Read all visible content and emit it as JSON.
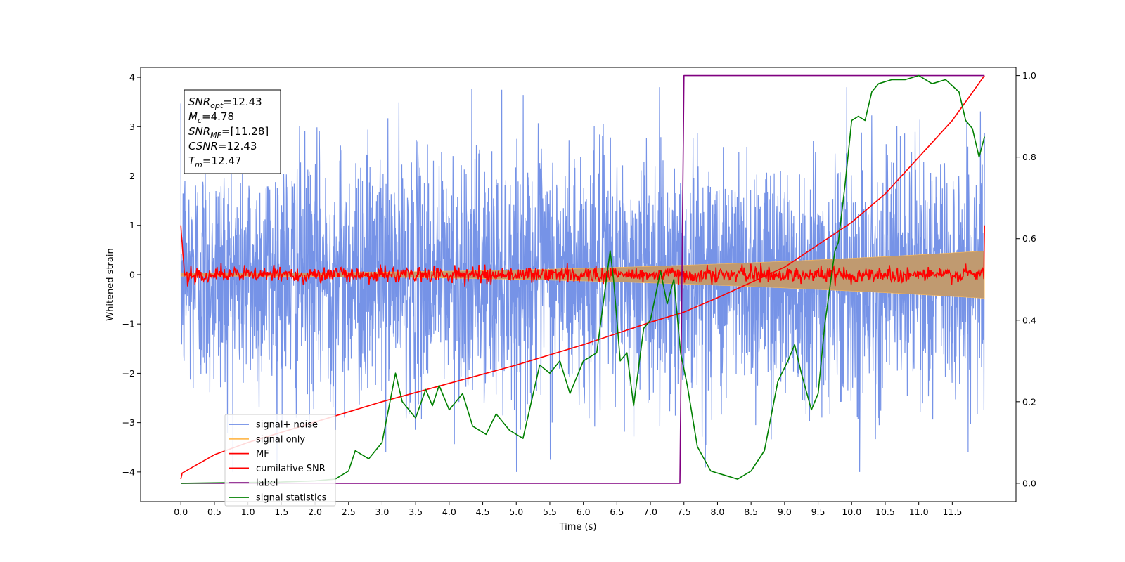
{
  "chart_data": {
    "type": "line",
    "title": "",
    "xlabel": "Time (s)",
    "ylabel": "Whitened strain",
    "xlim": [
      -0.6,
      12.45
    ],
    "ylim": [
      -4.6,
      4.2
    ],
    "y2lim": [
      -0.045,
      1.02
    ],
    "x_ticks": [
      0.0,
      0.5,
      1.0,
      1.5,
      2.0,
      2.5,
      3.0,
      3.5,
      4.0,
      4.5,
      5.0,
      5.5,
      6.0,
      6.5,
      7.0,
      7.5,
      8.0,
      8.5,
      9.0,
      9.5,
      10.0,
      10.5,
      11.0,
      11.5
    ],
    "x_tick_labels": [
      "0.0",
      "0.5",
      "1.0",
      "1.5",
      "2.0",
      "2.5",
      "3.0",
      "3.5",
      "4.0",
      "4.5",
      "5.0",
      "5.5",
      "6.0",
      "6.5",
      "7.0",
      "7.5",
      "8.0",
      "8.5",
      "9.0",
      "9.5",
      "10.0",
      "10.5",
      "11.0",
      "11.5"
    ],
    "y_ticks": [
      4,
      3,
      2,
      1,
      0,
      -1,
      -2,
      -3,
      -4
    ],
    "y_tick_labels": [
      "4",
      "3",
      "2",
      "1",
      "0",
      "−1",
      "−2",
      "−3",
      "−4"
    ],
    "y2_ticks": [
      1.0,
      0.8,
      0.6,
      0.4,
      0.2,
      0.0
    ],
    "y2_tick_labels": [
      "1.0",
      "0.8",
      "0.6",
      "0.4",
      "0.2",
      "0.0"
    ],
    "grid": false,
    "legend_position": "lower-left",
    "series": [
      {
        "name": "signal+ noise",
        "color": "#6f8de6",
        "axis": "left",
        "kind": "noise",
        "x_range": [
          0.0,
          11.98
        ],
        "spread": 1.25
      },
      {
        "name": "signal only",
        "color": "#ffbb55",
        "axis": "left",
        "kind": "chirp",
        "x_range": [
          0.0,
          11.98
        ],
        "amp_start": 0.03,
        "amp_end": 0.48
      },
      {
        "name": "MF",
        "color": "#ff0000",
        "axis": "left",
        "kind": "mf",
        "x_range": [
          0.0,
          11.98
        ],
        "spread": 0.08,
        "edge_value": 1.0
      },
      {
        "name": "cumilative SNR",
        "color": "#ff0000",
        "axis": "right",
        "x": [
          0.0,
          0.02,
          0.5,
          1.0,
          2.0,
          3.0,
          4.0,
          5.0,
          6.0,
          7.0,
          7.5,
          8.0,
          9.0,
          10.0,
          10.5,
          11.0,
          11.5,
          11.98
        ],
        "y": [
          0.01,
          0.025,
          0.07,
          0.1,
          0.15,
          0.2,
          0.245,
          0.29,
          0.34,
          0.395,
          0.42,
          0.455,
          0.53,
          0.64,
          0.71,
          0.8,
          0.89,
          1.0
        ]
      },
      {
        "name": "label",
        "color": "#800080",
        "axis": "right",
        "x": [
          0.0,
          7.44,
          7.5,
          11.98
        ],
        "y": [
          0.0,
          0.0,
          1.0,
          1.0
        ]
      },
      {
        "name": "signal statistics",
        "color": "#008000",
        "axis": "right",
        "x": [
          0.0,
          0.5,
          1.0,
          1.5,
          2.0,
          2.3,
          2.5,
          2.6,
          2.8,
          3.0,
          3.2,
          3.3,
          3.5,
          3.65,
          3.75,
          3.85,
          4.0,
          4.2,
          4.35,
          4.55,
          4.7,
          4.9,
          5.1,
          5.35,
          5.5,
          5.65,
          5.8,
          6.0,
          6.2,
          6.4,
          6.45,
          6.55,
          6.65,
          6.75,
          6.9,
          7.0,
          7.15,
          7.25,
          7.35,
          7.45,
          7.55,
          7.7,
          7.9,
          8.1,
          8.3,
          8.5,
          8.7,
          8.9,
          9.05,
          9.15,
          9.25,
          9.4,
          9.5,
          9.6,
          9.75,
          9.8,
          9.9,
          10.0,
          10.1,
          10.2,
          10.3,
          10.4,
          10.6,
          10.8,
          11.0,
          11.2,
          11.4,
          11.6,
          11.7,
          11.8,
          11.9,
          11.98
        ],
        "y": [
          0.0,
          0.001,
          0.002,
          0.003,
          0.006,
          0.01,
          0.03,
          0.08,
          0.06,
          0.1,
          0.27,
          0.2,
          0.16,
          0.23,
          0.19,
          0.24,
          0.18,
          0.22,
          0.14,
          0.12,
          0.17,
          0.13,
          0.11,
          0.29,
          0.27,
          0.3,
          0.22,
          0.3,
          0.32,
          0.57,
          0.5,
          0.3,
          0.32,
          0.19,
          0.38,
          0.4,
          0.52,
          0.44,
          0.5,
          0.32,
          0.24,
          0.09,
          0.03,
          0.02,
          0.01,
          0.03,
          0.08,
          0.25,
          0.3,
          0.34,
          0.27,
          0.18,
          0.22,
          0.39,
          0.57,
          0.59,
          0.73,
          0.89,
          0.9,
          0.89,
          0.96,
          0.98,
          0.99,
          0.99,
          1.0,
          0.98,
          0.99,
          0.96,
          0.89,
          0.87,
          0.8,
          0.85
        ]
      }
    ],
    "annotation": [
      {
        "main": "SNR",
        "sub": "opt",
        "value": "=12.43"
      },
      {
        "main": "M",
        "sub": "c",
        "value": "=4.78"
      },
      {
        "main": "SNR",
        "sub": "MF",
        "value": "=[11.28]"
      },
      {
        "main": "CSNR",
        "sub": "",
        "value": "=12.43"
      },
      {
        "main": "T",
        "sub": "m",
        "value": "=12.47"
      }
    ]
  }
}
